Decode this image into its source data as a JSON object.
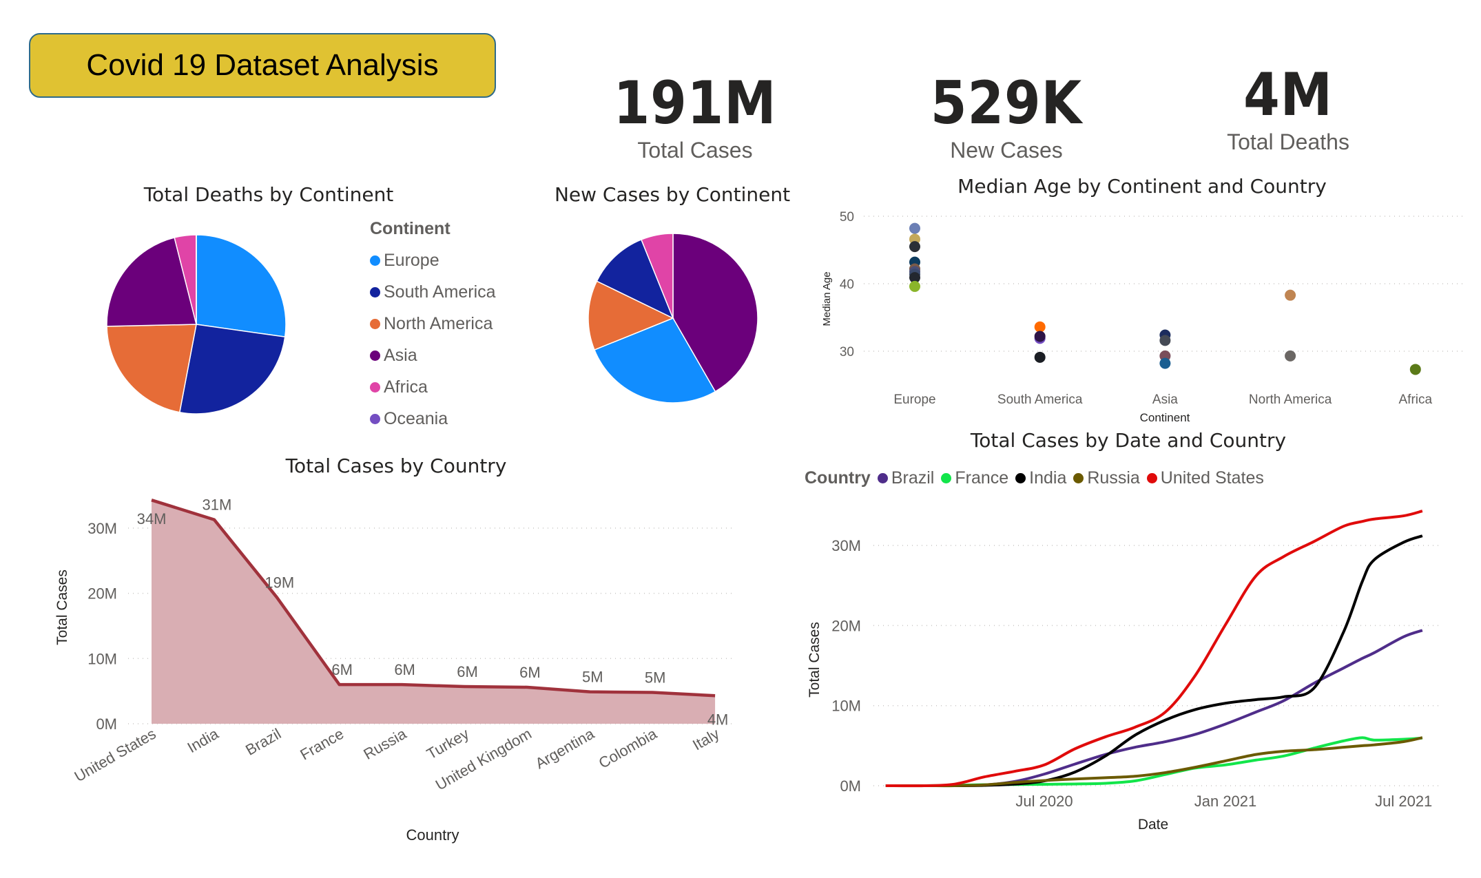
{
  "header": {
    "title": "Covid 19 Dataset Analysis"
  },
  "kpis": [
    {
      "value": "191M",
      "label": "Total Cases"
    },
    {
      "value": "529K",
      "label": "New Cases"
    },
    {
      "value": "4M",
      "label": "Total Deaths"
    }
  ],
  "continent_legend": {
    "title": "Continent",
    "items": [
      {
        "label": "Europe",
        "color": "#118dff"
      },
      {
        "label": "South America",
        "color": "#12239e"
      },
      {
        "label": "North America",
        "color": "#e66c37"
      },
      {
        "label": "Asia",
        "color": "#6b007b"
      },
      {
        "label": "Africa",
        "color": "#e044a7"
      },
      {
        "label": "Oceania",
        "color": "#744ec2"
      }
    ]
  },
  "chart_data": [
    {
      "type": "pie",
      "title": "Total Deaths by Continent",
      "categories": [
        "Europe",
        "South America",
        "North America",
        "Asia",
        "Africa",
        "Oceania"
      ],
      "values": [
        1100000,
        1040000,
        875000,
        865000,
        158000,
        1100
      ],
      "colors": [
        "#118dff",
        "#12239e",
        "#e66c37",
        "#6b007b",
        "#e044a7",
        "#744ec2"
      ]
    },
    {
      "type": "pie",
      "title": "New Cases by Continent",
      "categories": [
        "Asia",
        "Europe",
        "North America",
        "South America",
        "Africa"
      ],
      "values": [
        220600,
        144000,
        70400,
        61900,
        32300
      ],
      "colors": [
        "#6b007b",
        "#118dff",
        "#e66c37",
        "#12239e",
        "#e044a7"
      ]
    },
    {
      "type": "scatter",
      "title": "Median Age by Continent and Country",
      "xlabel": "Continent",
      "ylabel": "Median Age",
      "categories": [
        "Europe",
        "South America",
        "Asia",
        "North America",
        "Africa"
      ],
      "yticks": [
        "30",
        "40",
        "50"
      ],
      "ylim": [
        25,
        50
      ],
      "grid": true,
      "points": [
        {
          "x": "Europe",
          "y": 48.2,
          "color": "#6b7fb5"
        },
        {
          "x": "Europe",
          "y": 46.6,
          "color": "#c3a85a"
        },
        {
          "x": "Europe",
          "y": 45.5,
          "color": "#2b2f36"
        },
        {
          "x": "Europe",
          "y": 43.2,
          "color": "#0d3b5e"
        },
        {
          "x": "Europe",
          "y": 42.2,
          "color": "#7a5a48"
        },
        {
          "x": "Europe",
          "y": 41.8,
          "color": "#4a4f78"
        },
        {
          "x": "Europe",
          "y": 41.4,
          "color": "#3b4a6b"
        },
        {
          "x": "Europe",
          "y": 40.9,
          "color": "#23272f"
        },
        {
          "x": "Europe",
          "y": 39.6,
          "color": "#8ab52a"
        },
        {
          "x": "South America",
          "y": 33.6,
          "color": "#ff6a00"
        },
        {
          "x": "South America",
          "y": 31.9,
          "color": "#744ec2"
        },
        {
          "x": "South America",
          "y": 32.2,
          "color": "#2e1447"
        },
        {
          "x": "South America",
          "y": 29.1,
          "color": "#1b1e24"
        },
        {
          "x": "Asia",
          "y": 32.4,
          "color": "#1c2c5e"
        },
        {
          "x": "Asia",
          "y": 31.6,
          "color": "#454a55"
        },
        {
          "x": "Asia",
          "y": 29.3,
          "color": "#7a4d5a"
        },
        {
          "x": "Asia",
          "y": 28.2,
          "color": "#1a5e91"
        },
        {
          "x": "North America",
          "y": 38.3,
          "color": "#c08552"
        },
        {
          "x": "North America",
          "y": 29.3,
          "color": "#6b6764"
        },
        {
          "x": "Africa",
          "y": 27.3,
          "color": "#5b7a18"
        }
      ]
    },
    {
      "type": "area",
      "title": "Total Cases by Country",
      "xlabel": "Country",
      "ylabel": "Total Cases",
      "categories": [
        "United States",
        "India",
        "Brazil",
        "France",
        "Russia",
        "Turkey",
        "United Kingdom",
        "Argentina",
        "Colombia",
        "Italy"
      ],
      "values": [
        34.3,
        31.3,
        19.4,
        6.0,
        6.0,
        5.7,
        5.6,
        4.9,
        4.8,
        4.3
      ],
      "data_labels": [
        "34M",
        "31M",
        "19M",
        "6M",
        "6M",
        "6M",
        "6M",
        "5M",
        "5M",
        "4M"
      ],
      "yticks": [
        "0M",
        "10M",
        "20M",
        "30M"
      ],
      "ylim": [
        0,
        36
      ],
      "unit": "M",
      "grid": true,
      "color": "#a0323c",
      "fill": "#d9aeb3"
    },
    {
      "type": "line",
      "title": "Total Cases by Date and Country",
      "xlabel": "Date",
      "ylabel": "Total Cases",
      "legend_title": "Country",
      "legend": "top-left",
      "xticks": [
        "Jul 2020",
        "Jan 2021",
        "Jul 2021"
      ],
      "xtick_dates": [
        "2020-07-01",
        "2021-01-01",
        "2021-07-01"
      ],
      "yticks": [
        "0M",
        "10M",
        "20M",
        "30M"
      ],
      "ylim": [
        0,
        36
      ],
      "grid": true,
      "x": [
        "2020-01-22",
        "2020-03-01",
        "2020-04-01",
        "2020-05-01",
        "2020-06-01",
        "2020-07-01",
        "2020-08-01",
        "2020-09-01",
        "2020-10-01",
        "2020-11-01",
        "2020-12-01",
        "2021-01-01",
        "2021-02-01",
        "2021-03-01",
        "2021-04-01",
        "2021-05-01",
        "2021-05-20",
        "2021-06-01",
        "2021-07-01",
        "2021-07-20"
      ],
      "series": [
        {
          "name": "Brazil",
          "color": "#4f2d8a",
          "values": [
            0,
            0,
            0.01,
            0.09,
            0.53,
            1.45,
            2.7,
            3.9,
            4.8,
            5.5,
            6.4,
            7.7,
            9.2,
            10.6,
            12.8,
            14.7,
            15.9,
            16.6,
            18.6,
            19.4
          ]
        },
        {
          "name": "France",
          "color": "#12e54a",
          "values": [
            0,
            0,
            0.05,
            0.13,
            0.15,
            0.17,
            0.22,
            0.3,
            0.6,
            1.4,
            2.2,
            2.6,
            3.2,
            3.7,
            4.7,
            5.6,
            6.0,
            5.7,
            5.8,
            5.95
          ]
        },
        {
          "name": "India",
          "color": "#000000",
          "values": [
            0,
            0,
            0,
            0.04,
            0.2,
            0.6,
            1.7,
            3.7,
            6.3,
            8.2,
            9.5,
            10.3,
            10.75,
            11.1,
            12.2,
            19.2,
            25.5,
            28.2,
            30.4,
            31.2
          ]
        },
        {
          "name": "Russia",
          "color": "#6b5a00",
          "values": [
            0,
            0,
            0,
            0.11,
            0.41,
            0.65,
            0.84,
            1.0,
            1.18,
            1.64,
            2.3,
            3.1,
            3.9,
            4.3,
            4.5,
            4.8,
            5.0,
            5.1,
            5.5,
            6.0
          ]
        },
        {
          "name": "United States",
          "color": "#e00b0b",
          "values": [
            0,
            0,
            0.2,
            1.1,
            1.8,
            2.6,
            4.6,
            6.1,
            7.3,
            9.2,
            13.7,
            20.1,
            26.2,
            28.6,
            30.5,
            32.4,
            33.0,
            33.3,
            33.7,
            34.3
          ]
        }
      ]
    }
  ]
}
